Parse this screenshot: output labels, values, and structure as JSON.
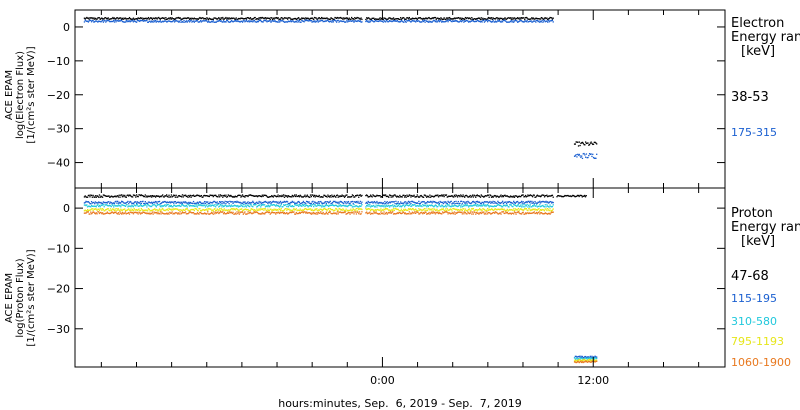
{
  "chart_data": [
    {
      "type": "scatter",
      "ylabel_lines": [
        "ACE EPAM",
        "log(Electron Flux)",
        "[1/(cm²s ster MeV)]"
      ],
      "yticks": [
        0,
        -10,
        -20,
        -30,
        -40
      ],
      "ylim": [
        -47.5,
        5
      ],
      "xlim": [
        -17.5,
        19.5
      ],
      "legend": {
        "title_lines": [
          "Electron",
          "Energy ranges",
          "[keV]"
        ],
        "position": "right"
      },
      "series": [
        {
          "name": "38-53",
          "color": "#000000",
          "segments": [
            {
              "x0": -17.0,
              "x1": 9.7,
              "y": 2.5,
              "jitter": 0.3
            },
            {
              "x0": 10.9,
              "x1": 12.2,
              "y": -34.5,
              "jitter": 0.6
            }
          ]
        },
        {
          "name": "175-315",
          "color": "#1a5fd0",
          "segments": [
            {
              "x0": -17.0,
              "x1": 9.7,
              "y": 1.7,
              "jitter": 0.3
            },
            {
              "x0": 10.9,
              "x1": 12.2,
              "y": -38.0,
              "jitter": 0.8
            }
          ]
        }
      ]
    },
    {
      "type": "scatter",
      "ylabel_lines": [
        "ACE EPAM",
        "log(Proton Flux)",
        "[1/(cm²s ster MeV)]"
      ],
      "yticks": [
        0,
        -10,
        -20,
        -30
      ],
      "ylim": [
        -39.5,
        5
      ],
      "xlim": [
        -17.5,
        19.5
      ],
      "legend": {
        "title_lines": [
          "Proton",
          "Energy ranges",
          "[keV]"
        ],
        "position": "right"
      },
      "series": [
        {
          "name": "47-68",
          "color": "#000000",
          "segments": [
            {
              "x0": -17.0,
              "x1": 9.7,
              "y": 3.0,
              "jitter": 0.3
            },
            {
              "x0": 9.9,
              "x1": 11.6,
              "y": 3.0,
              "jitter": 0.2
            }
          ]
        },
        {
          "name": "115-195",
          "color": "#1a5fd0",
          "segments": [
            {
              "x0": -17.0,
              "x1": 9.7,
              "y": 1.4,
              "jitter": 0.3
            },
            {
              "x0": 10.9,
              "x1": 12.2,
              "y": -37.0,
              "jitter": 0.2
            }
          ]
        },
        {
          "name": "310-580",
          "color": "#20c8dc",
          "segments": [
            {
              "x0": -17.0,
              "x1": 9.7,
              "y": 0.6,
              "jitter": 0.3
            },
            {
              "x0": 10.9,
              "x1": 12.2,
              "y": -37.4,
              "jitter": 0.2
            }
          ]
        },
        {
          "name": "795-1193",
          "color": "#e6e619",
          "segments": [
            {
              "x0": -17.0,
              "x1": 9.7,
              "y": -0.4,
              "jitter": 0.3
            },
            {
              "x0": 10.9,
              "x1": 12.2,
              "y": -37.8,
              "jitter": 0.2
            }
          ]
        },
        {
          "name": "1060-1900",
          "color": "#e8781e",
          "segments": [
            {
              "x0": -17.0,
              "x1": 9.7,
              "y": -1.2,
              "jitter": 0.3
            },
            {
              "x0": 10.9,
              "x1": 12.2,
              "y": -38.2,
              "jitter": 0.2
            }
          ]
        }
      ]
    }
  ],
  "x_axis": {
    "ticks": [
      {
        "x": 0,
        "label": "0:00"
      },
      {
        "x": 12,
        "label": "12:00"
      }
    ],
    "minor_step": 2,
    "xlabel": "hours:minutes, Sep.  6, 2019 - Sep.  7, 2019"
  }
}
